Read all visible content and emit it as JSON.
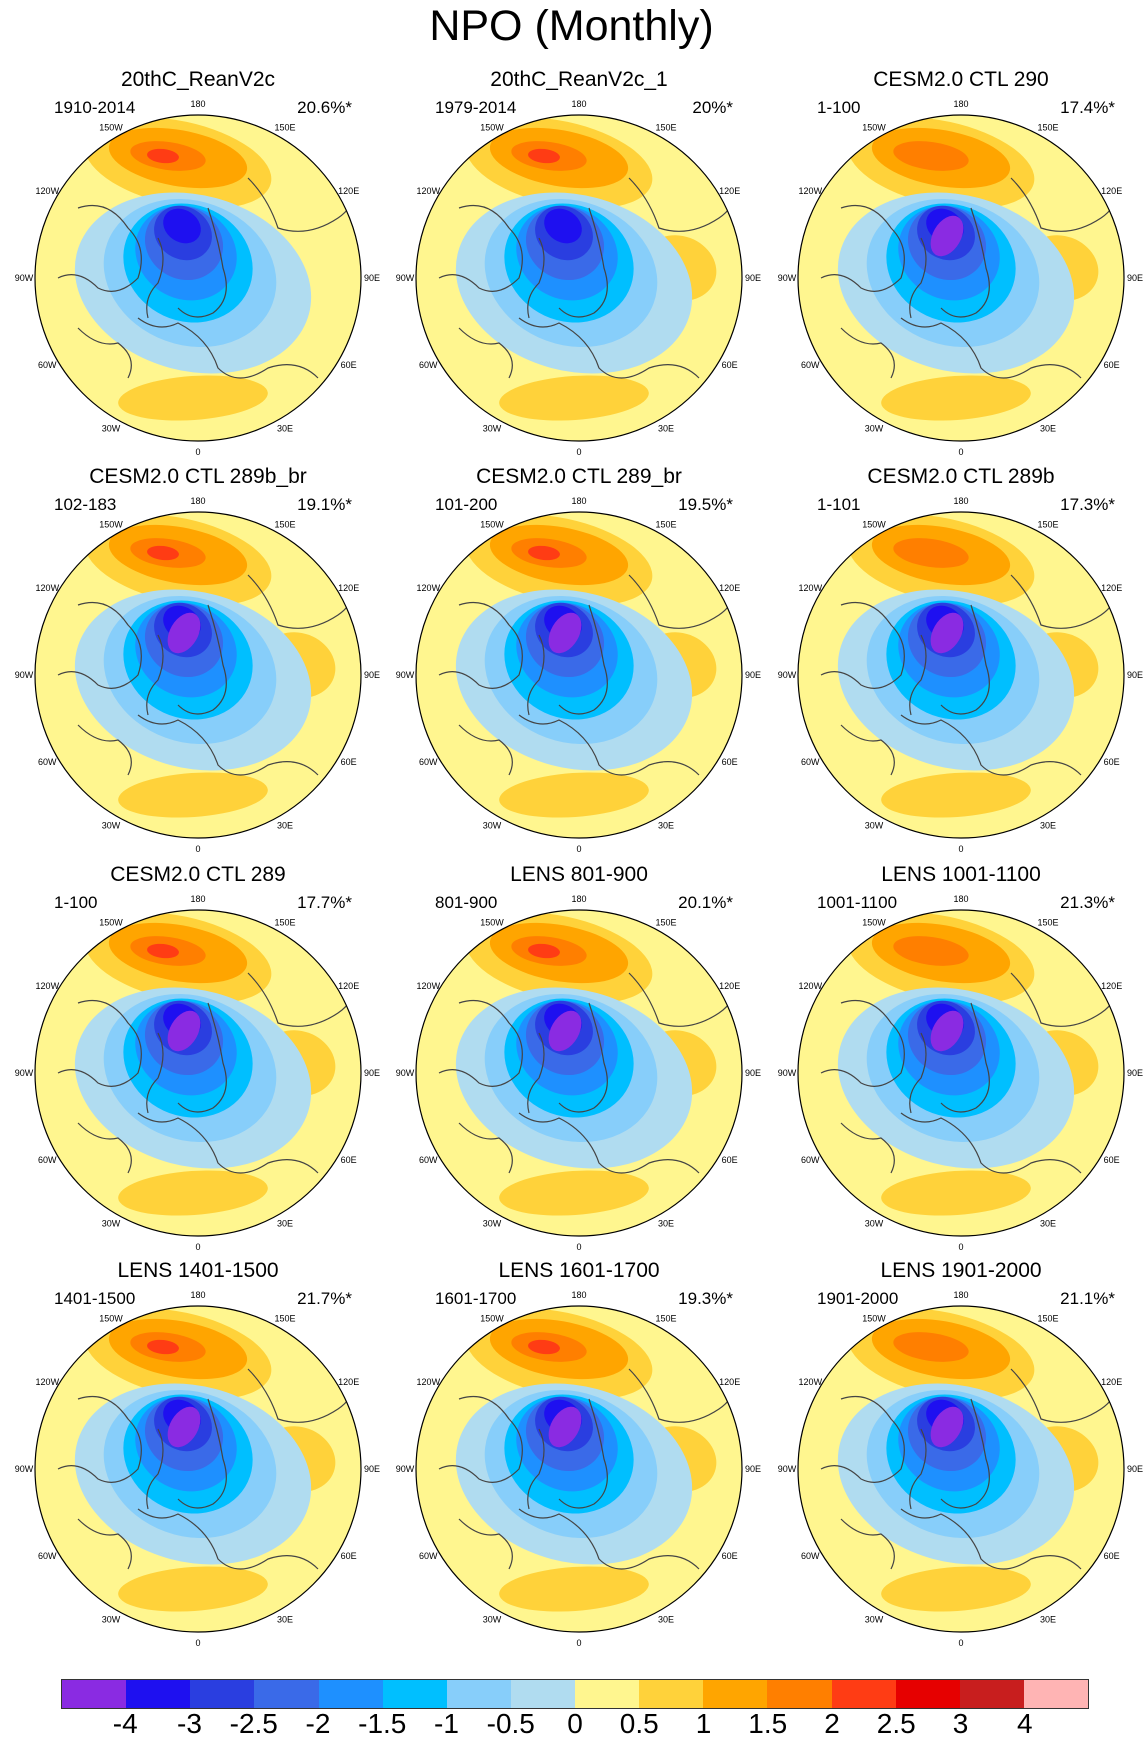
{
  "title": "NPO (Monthly)",
  "lon_labels": [
    "180",
    "150E",
    "120E",
    "90E",
    "60E",
    "30E",
    "0",
    "30W",
    "60W",
    "90W",
    "120W",
    "150W"
  ],
  "panels": [
    {
      "title": "20thC_ReanV2c",
      "period": "1910-2014",
      "variance": "20.6%*"
    },
    {
      "title": "20thC_ReanV2c_1",
      "period": "1979-2014",
      "variance": "20%*"
    },
    {
      "title": "CESM2.0 CTL 290",
      "period": "1-100",
      "variance": "17.4%*"
    },
    {
      "title": "CESM2.0 CTL 289b_br",
      "period": "102-183",
      "variance": "19.1%*"
    },
    {
      "title": "CESM2.0 CTL 289_br",
      "period": "101-200",
      "variance": "19.5%*"
    },
    {
      "title": "CESM2.0 CTL 289b",
      "period": "1-101",
      "variance": "17.3%*"
    },
    {
      "title": "CESM2.0 CTL 289",
      "period": "1-100",
      "variance": "17.7%*"
    },
    {
      "title": "LENS 801-900",
      "period": "801-900",
      "variance": "20.1%*"
    },
    {
      "title": "LENS 1001-1100",
      "period": "1001-1100",
      "variance": "21.3%*"
    },
    {
      "title": "LENS 1401-1500",
      "period": "1401-1500",
      "variance": "21.7%*"
    },
    {
      "title": "LENS 1601-1700",
      "period": "1601-1700",
      "variance": "19.3%*"
    },
    {
      "title": "LENS 1901-2000",
      "period": "1901-2000",
      "variance": "21.1%*"
    }
  ],
  "colorbar": {
    "colors": [
      "#8a2be2",
      "#1e10f0",
      "#2a3ee0",
      "#3a6ae8",
      "#1e90ff",
      "#00bfff",
      "#87cefa",
      "#b0dcf0",
      "#fff68f",
      "#ffd23a",
      "#ffa500",
      "#ff7f00",
      "#ff3c14",
      "#e60000",
      "#c81e1e",
      "#ffb4b4"
    ],
    "labels": [
      "-4",
      "-3",
      "-2.5",
      "-2",
      "-1.5",
      "-1",
      "-0.5",
      "0",
      "0.5",
      "1",
      "1.5",
      "2",
      "2.5",
      "3",
      "4"
    ]
  },
  "palette": {
    "ocean_bg": "#fff68f",
    "coast": "#444444",
    "arctic_coast": "#777777"
  }
}
